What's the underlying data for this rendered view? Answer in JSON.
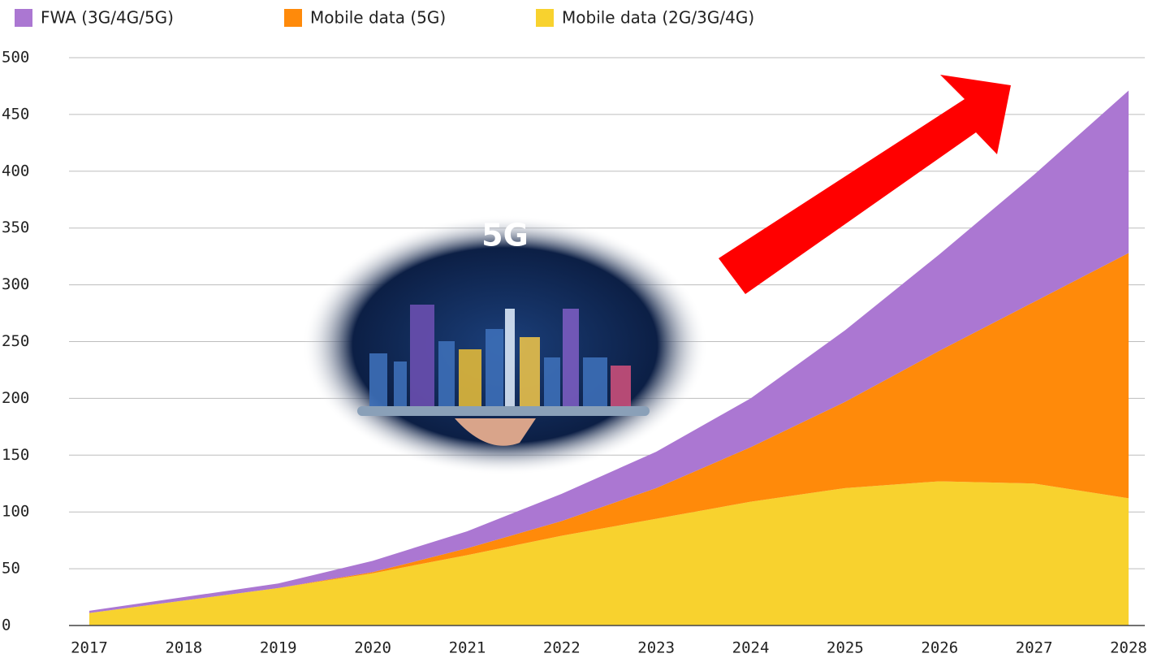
{
  "chart_data": {
    "type": "stacked_area",
    "annotation": "5G",
    "x": [
      2017,
      2018,
      2019,
      2020,
      2021,
      2022,
      2023,
      2024,
      2025,
      2026,
      2027,
      2028
    ],
    "xlim": [
      2017,
      2028
    ],
    "xticks": [
      2017,
      2018,
      2019,
      2020,
      2021,
      2022,
      2023,
      2024,
      2025,
      2026,
      2027,
      2028
    ],
    "ylim": [
      0,
      500
    ],
    "yticks": [
      0,
      50,
      100,
      150,
      200,
      250,
      300,
      350,
      400,
      450,
      500
    ],
    "grid": true,
    "legend": "top-left",
    "series": [
      {
        "name": "FWA (3G/4G/5G)",
        "color": "#ab77d2",
        "values": [
          2,
          3,
          4,
          10,
          15,
          24,
          32,
          43,
          63,
          85,
          112,
          143
        ]
      },
      {
        "name": "Mobile data (5G)",
        "color": "#ff8a0a",
        "values": [
          0,
          0,
          0,
          1,
          6,
          13,
          27,
          48,
          76,
          115,
          160,
          216
        ]
      },
      {
        "name": "Mobile data (2G/3G/4G)",
        "color": "#f8d22e",
        "values": [
          11,
          22,
          33,
          46,
          62,
          79,
          94,
          109,
          121,
          127,
          125,
          112
        ]
      }
    ]
  }
}
